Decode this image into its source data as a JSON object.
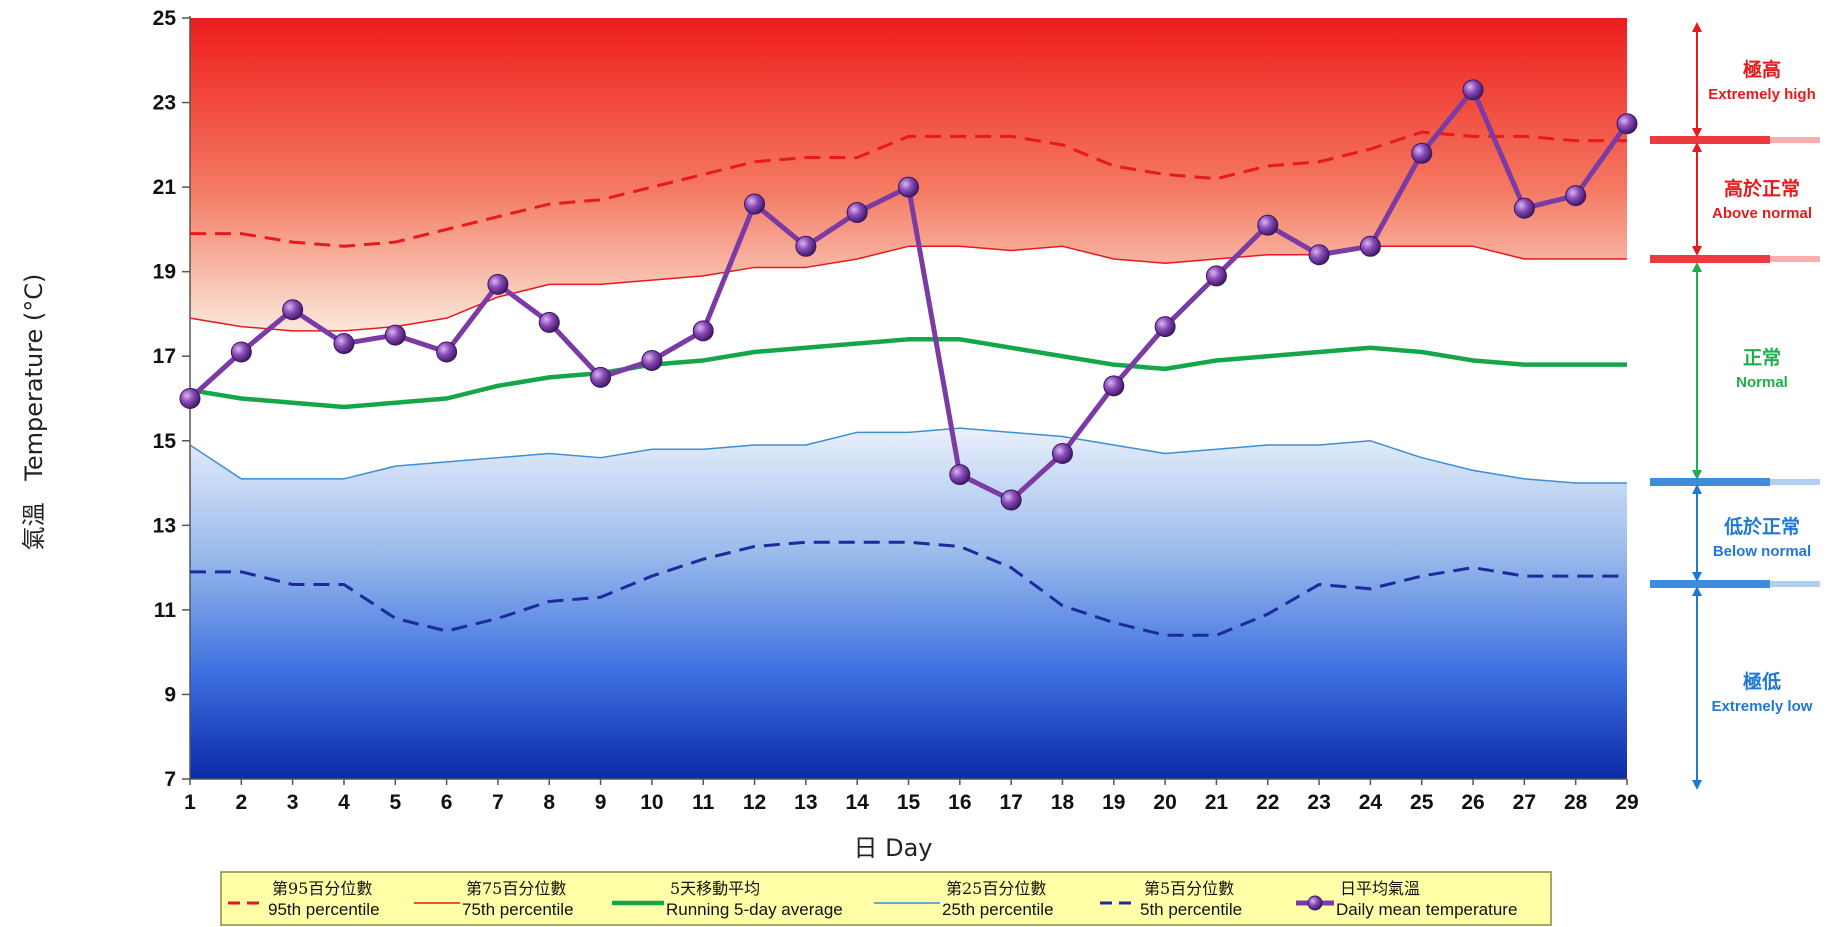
{
  "chart_data": {
    "type": "line",
    "title": "",
    "xlabel": "日 Day",
    "ylabel_zh": "氣溫",
    "ylabel_en": "Temperature (°C)",
    "ylim": [
      7,
      25
    ],
    "yticks": [
      7,
      9,
      11,
      13,
      15,
      17,
      19,
      21,
      23,
      25
    ],
    "x": [
      1,
      2,
      3,
      4,
      5,
      6,
      7,
      8,
      9,
      10,
      11,
      12,
      13,
      14,
      15,
      16,
      17,
      18,
      19,
      20,
      21,
      22,
      23,
      24,
      25,
      26,
      27,
      28,
      29
    ],
    "grid": false,
    "legend_position": "bottom",
    "series": [
      {
        "name_zh": "第95百分位數",
        "name": "95th percentile",
        "color": "#e8191c",
        "style": "dashed",
        "values": [
          19.9,
          19.9,
          19.7,
          19.6,
          19.7,
          20.0,
          20.3,
          20.6,
          20.7,
          21.0,
          21.3,
          21.6,
          21.7,
          21.7,
          22.2,
          22.2,
          22.2,
          22.0,
          21.5,
          21.3,
          21.2,
          21.5,
          21.6,
          21.9,
          22.3,
          22.2,
          22.2,
          22.1,
          22.1
        ]
      },
      {
        "name_zh": "第75百分位數",
        "name": "75th percentile",
        "color": "#e8191c",
        "style": "thin",
        "values": [
          17.9,
          17.7,
          17.6,
          17.6,
          17.7,
          17.9,
          18.4,
          18.7,
          18.7,
          18.8,
          18.9,
          19.1,
          19.1,
          19.3,
          19.6,
          19.6,
          19.5,
          19.6,
          19.3,
          19.2,
          19.3,
          19.4,
          19.4,
          19.6,
          19.6,
          19.6,
          19.3,
          19.3,
          19.3
        ]
      },
      {
        "name_zh": "5天移動平均",
        "name": "Running 5-day average",
        "color": "#16a64a",
        "style": "thick",
        "values": [
          16.2,
          16.0,
          15.9,
          15.8,
          15.9,
          16.0,
          16.3,
          16.5,
          16.6,
          16.8,
          16.9,
          17.1,
          17.2,
          17.3,
          17.4,
          17.4,
          17.2,
          17.0,
          16.8,
          16.7,
          16.9,
          17.0,
          17.1,
          17.2,
          17.1,
          16.9,
          16.8,
          16.8,
          16.8
        ]
      },
      {
        "name_zh": "第25百分位數",
        "name": "25th percentile",
        "color": "#3a8fd6",
        "style": "thin",
        "values": [
          14.9,
          14.1,
          14.1,
          14.1,
          14.4,
          14.5,
          14.6,
          14.7,
          14.6,
          14.8,
          14.8,
          14.9,
          14.9,
          15.2,
          15.2,
          15.3,
          15.2,
          15.1,
          14.9,
          14.7,
          14.8,
          14.9,
          14.9,
          15.0,
          14.6,
          14.3,
          14.1,
          14.0,
          14.0
        ]
      },
      {
        "name_zh": "第5百分位數",
        "name": "5th percentile",
        "color": "#1d2a9c",
        "style": "dashed",
        "values": [
          11.9,
          11.9,
          11.6,
          11.6,
          10.8,
          10.5,
          10.8,
          11.2,
          11.3,
          11.8,
          12.2,
          12.5,
          12.6,
          12.6,
          12.6,
          12.5,
          12.0,
          11.1,
          10.7,
          10.4,
          10.4,
          10.9,
          11.6,
          11.5,
          11.8,
          12.0,
          11.8,
          11.8,
          11.8
        ]
      },
      {
        "name_zh": "日平均氣溫",
        "name": "Daily mean temperature",
        "color": "#7b3aa4",
        "style": "markers",
        "values": [
          16.0,
          17.1,
          18.1,
          17.3,
          17.5,
          17.1,
          18.7,
          17.8,
          16.5,
          16.9,
          17.6,
          20.6,
          19.6,
          20.4,
          21.0,
          14.2,
          13.6,
          14.7,
          16.3,
          17.7,
          18.9,
          20.1,
          19.4,
          19.6,
          21.8,
          23.3,
          20.5,
          20.8,
          22.5
        ]
      }
    ],
    "bands": [
      {
        "zh": "極高",
        "en": "Extremely high",
        "color": "#e8191c"
      },
      {
        "zh": "高於正常",
        "en": "Above normal",
        "color": "#e8191c"
      },
      {
        "zh": "正常",
        "en": "Normal",
        "color": "#1fae4b"
      },
      {
        "zh": "低於正常",
        "en": "Below normal",
        "color": "#1f78d6"
      },
      {
        "zh": "極低",
        "en": "Extremely low",
        "color": "#1f78d6"
      }
    ]
  }
}
